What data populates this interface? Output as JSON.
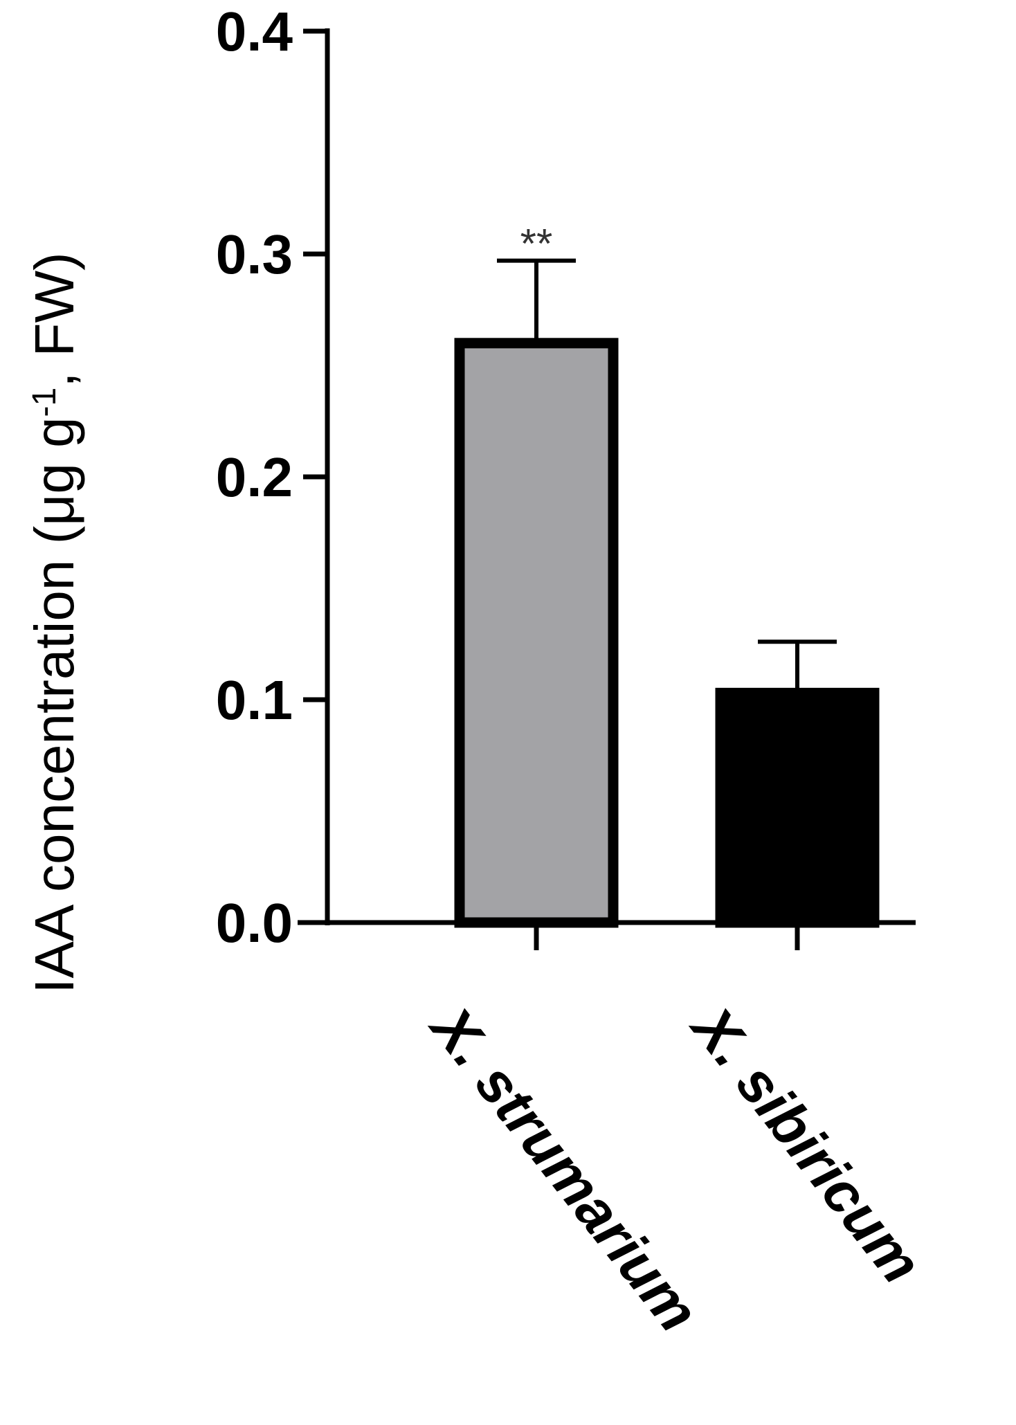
{
  "chart_data": {
    "type": "bar",
    "categories": [
      "X. strumarium",
      "X. sibiricum"
    ],
    "values": [
      0.26,
      0.103
    ],
    "errors": [
      0.037,
      0.023
    ],
    "annotations": [
      "**",
      ""
    ],
    "ylabel": "IAA concentration (μg g",
    "ylabel_sup": "-1",
    "ylabel_tail": ", FW)",
    "ylim": [
      0,
      0.4
    ],
    "yticks": [
      "0.0",
      "0.1",
      "0.2",
      "0.3",
      "0.4"
    ],
    "bar_colors": [
      "#a3a3a6",
      "#000000"
    ],
    "grid": false,
    "legend": "none"
  }
}
